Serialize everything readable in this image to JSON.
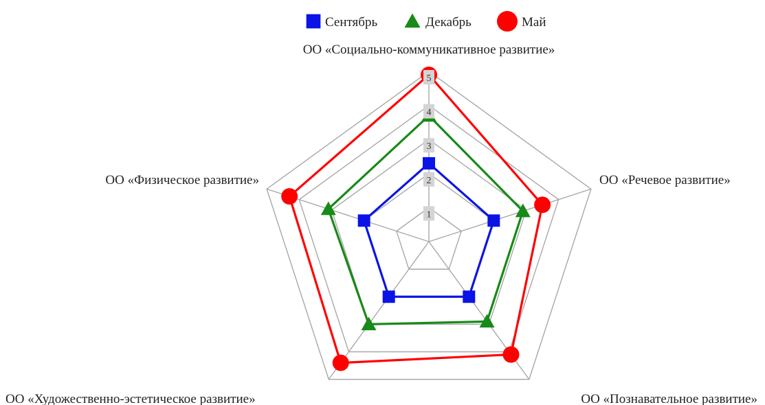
{
  "chart_data": {
    "type": "radar",
    "categories": [
      "ОО «Социально-коммуникативное развитие»",
      "ОО «Речевое развитие»",
      "ОО «Познавательное развитие»",
      "ОО «Художественно-эстетическое развитие»",
      "ОО «Физическое развитие»"
    ],
    "ticks": [
      "1",
      "2",
      "3",
      "4",
      "5"
    ],
    "rmax": 5,
    "grid": true,
    "legend_position": "top",
    "series": [
      {
        "name": "Сентябрь",
        "marker": "square",
        "color": "#0a14e6",
        "values": [
          2.3,
          2.0,
          2.0,
          2.0,
          2.0
        ]
      },
      {
        "name": "Декабрь",
        "marker": "triangle",
        "color": "#178a17",
        "values": [
          3.7,
          2.9,
          2.9,
          3.0,
          3.1
        ]
      },
      {
        "name": "Май",
        "marker": "circle",
        "color": "#ff0000",
        "values": [
          4.9,
          3.5,
          4.1,
          4.4,
          4.3
        ]
      }
    ]
  }
}
